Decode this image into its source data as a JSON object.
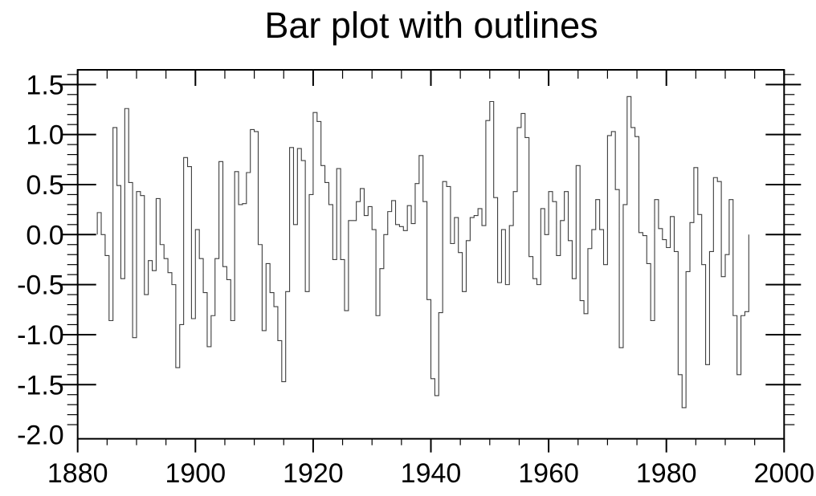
{
  "title": "Bar plot with outlines",
  "chart_data": {
    "type": "bar",
    "subtype": "outline-only step bars",
    "title": "Bar plot with outlines",
    "xlabel": "",
    "ylabel": "",
    "xlim": [
      1880,
      2000
    ],
    "ylim": [
      -2.041,
      1.647
    ],
    "x_major_ticks": [
      1880,
      1900,
      1920,
      1940,
      1960,
      1980,
      2000
    ],
    "x_minor_step": 5,
    "y_major_ticks": [
      -2.0,
      -1.5,
      -1.0,
      -0.5,
      0.0,
      0.5,
      1.0,
      1.5
    ],
    "y_tick_labels": [
      "-2.0",
      "-1.5",
      "-1.0",
      "-0.5",
      "0.0",
      "0.5",
      "1.0",
      "1.5"
    ],
    "y_minor_step": 0.1,
    "grid": "off",
    "legend": "none",
    "x_start": 1883.3333,
    "x_step": 0.6666667,
    "values": [
      0.22,
      0.0,
      -0.21,
      -0.86,
      1.07,
      0.49,
      -0.44,
      1.26,
      0.52,
      -1.03,
      0.43,
      0.39,
      -0.6,
      -0.26,
      -0.36,
      0.36,
      -0.1,
      -0.24,
      -0.38,
      -0.5,
      -1.33,
      -0.9,
      0.77,
      0.68,
      -0.84,
      0.05,
      -0.24,
      -0.58,
      -1.12,
      -0.81,
      -0.24,
      0.73,
      -0.32,
      -0.45,
      -0.86,
      0.63,
      0.3,
      0.31,
      0.62,
      1.05,
      1.03,
      -0.1,
      -0.96,
      -0.29,
      -0.58,
      -0.72,
      -1.06,
      -1.47,
      -0.57,
      0.87,
      0.1,
      0.86,
      0.74,
      -0.57,
      0.4,
      1.22,
      1.13,
      0.69,
      0.52,
      0.3,
      -0.25,
      0.66,
      -0.25,
      -0.76,
      0.14,
      0.14,
      0.33,
      0.46,
      0.19,
      0.28,
      0.05,
      -0.81,
      -0.34,
      0.0,
      0.23,
      0.34,
      0.1,
      0.08,
      0.04,
      0.29,
      0.11,
      0.51,
      0.79,
      0.33,
      -0.65,
      -1.44,
      -1.61,
      -0.78,
      0.53,
      0.48,
      -0.09,
      0.17,
      -0.18,
      -0.57,
      -0.06,
      0.17,
      0.19,
      0.26,
      0.09,
      1.14,
      1.33,
      0.37,
      -0.48,
      0.05,
      -0.5,
      0.09,
      0.43,
      1.07,
      1.21,
      0.97,
      -0.22,
      -0.44,
      -0.5,
      0.26,
      0.0,
      0.43,
      0.33,
      -0.21,
      0.14,
      0.43,
      -0.06,
      -0.44,
      0.69,
      -0.66,
      -0.79,
      -0.14,
      0.05,
      0.35,
      0.05,
      -0.3,
      0.99,
      1.03,
      0.45,
      -1.13,
      0.3,
      1.38,
      1.07,
      0.98,
      0.02,
      -0.01,
      -0.29,
      -0.86,
      0.35,
      0.06,
      -0.05,
      -0.13,
      0.18,
      -0.17,
      -1.4,
      -1.73,
      -0.37,
      0.12,
      0.67,
      0.2,
      -0.3,
      -1.3,
      -0.17,
      0.57,
      0.53,
      -0.42,
      -0.2,
      0.35,
      -0.81,
      -1.4,
      -0.81,
      -0.77
    ],
    "colors": {
      "background": "#ffffff",
      "axis": "#000000",
      "bar_outline": "#3d3d3d",
      "text": "#000000"
    }
  }
}
